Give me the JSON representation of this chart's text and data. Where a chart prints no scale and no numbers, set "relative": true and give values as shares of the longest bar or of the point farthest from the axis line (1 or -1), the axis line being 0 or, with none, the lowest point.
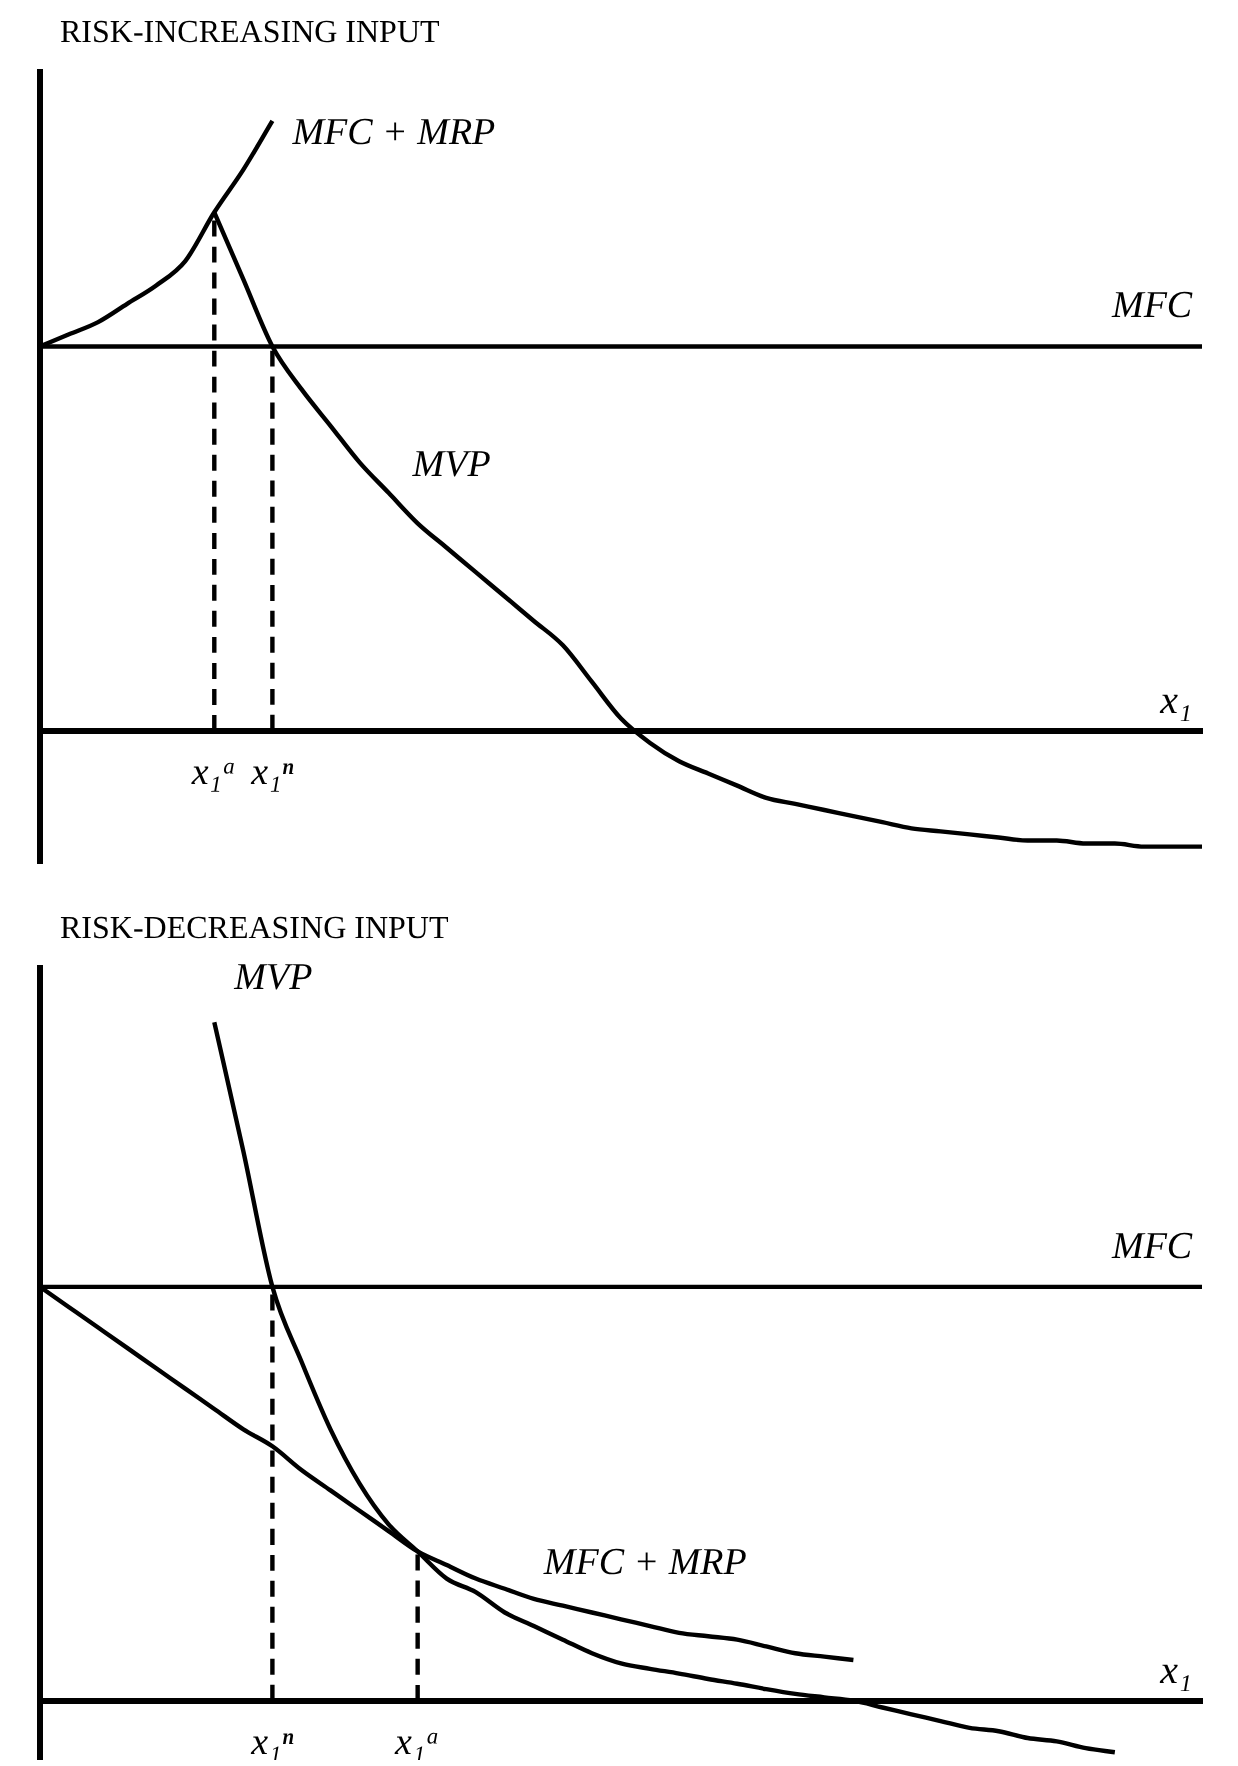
{
  "chart_data": [
    {
      "type": "line",
      "title": "RISK-INCREASING INPUT",
      "xlabel": "x₁",
      "relative": true,
      "grid": false,
      "legend": false,
      "categories": [
        null,
        null,
        null,
        null,
        null,
        null,
        "x₁ᵃ",
        null,
        "x₁ⁿ",
        null,
        null,
        null,
        null,
        null,
        null,
        null,
        null,
        null,
        null,
        null,
        null,
        null,
        null,
        null,
        null,
        null,
        null,
        null,
        null,
        null,
        null,
        null,
        null,
        null,
        null,
        null,
        null,
        null,
        null,
        null,
        null
      ],
      "series": [
        {
          "name": "MFC",
          "type": "line",
          "color": "#000000",
          "line_style": "solid",
          "values": [
            0.63,
            0.63,
            0.63,
            0.63,
            0.63,
            0.63,
            0.63,
            0.63,
            0.63,
            0.63,
            0.63,
            0.63,
            0.63,
            0.63,
            0.63,
            0.63,
            0.63,
            0.63,
            0.63,
            0.63,
            0.63,
            0.63,
            0.63,
            0.63,
            0.63,
            0.63,
            0.63,
            0.63,
            0.63,
            0.63,
            0.63,
            0.63,
            0.63,
            0.63,
            0.63,
            0.63,
            0.63,
            0.63,
            0.63,
            0.63,
            0.63
          ]
        },
        {
          "name": "MFC + MRP",
          "type": "line",
          "color": "#000000",
          "line_style": "solid",
          "values": [
            0.63,
            0.65,
            0.67,
            0.7,
            0.73,
            0.77,
            0.85,
            0.92,
            1.0,
            null,
            null,
            null,
            null,
            null,
            null,
            null,
            null,
            null,
            null,
            null,
            null,
            null,
            null,
            null,
            null,
            null,
            null,
            null,
            null,
            null,
            null,
            null,
            null,
            null,
            null,
            null,
            null,
            null,
            null,
            null,
            null
          ]
        },
        {
          "name": "MVP",
          "type": "line",
          "color": "#000000",
          "line_style": "solid",
          "values": [
            null,
            null,
            null,
            null,
            null,
            null,
            0.85,
            0.74,
            0.63,
            0.56,
            0.5,
            0.44,
            0.39,
            0.34,
            0.3,
            0.26,
            0.22,
            0.18,
            0.14,
            0.08,
            0.02,
            -0.02,
            -0.05,
            -0.07,
            -0.09,
            -0.11,
            -0.12,
            -0.13,
            -0.14,
            -0.15,
            -0.16,
            -0.165,
            -0.17,
            -0.175,
            -0.18,
            -0.18,
            -0.185,
            -0.185,
            -0.19,
            -0.19,
            -0.19
          ]
        },
        {
          "type": "line",
          "color": "#000000",
          "line_style": "dashed",
          "x": [
            "x₁ᵃ",
            "x₁ᵃ"
          ],
          "values": [
            0,
            0.85
          ]
        },
        {
          "type": "line",
          "color": "#000000",
          "line_style": "dashed",
          "x": [
            "x₁ⁿ",
            "x₁ⁿ"
          ],
          "values": [
            0,
            0.63
          ]
        }
      ]
    },
    {
      "type": "line",
      "title": "RISK-DECREASING INPUT",
      "xlabel": "x₁",
      "relative": true,
      "grid": false,
      "legend": false,
      "categories": [
        null,
        null,
        null,
        null,
        null,
        null,
        null,
        null,
        "x₁ⁿ",
        null,
        null,
        null,
        null,
        "x₁ᵃ",
        null,
        null,
        null,
        null,
        null,
        null,
        null,
        null,
        null,
        null,
        null,
        null,
        null,
        null,
        null,
        null,
        null,
        null,
        null,
        null,
        null,
        null,
        null,
        null,
        null,
        null,
        null
      ],
      "series": [
        {
          "name": "MVP",
          "type": "line",
          "color": "#000000",
          "line_style": "solid",
          "values": [
            null,
            null,
            null,
            null,
            null,
            null,
            1.0,
            0.81,
            0.61,
            0.5,
            0.4,
            0.32,
            0.26,
            0.22,
            0.18,
            0.16,
            0.13,
            0.11,
            0.09,
            0.07,
            0.055,
            0.047,
            0.04,
            0.032,
            0.025,
            0.017,
            0.01,
            0.005,
            0.0,
            -0.01,
            -0.02,
            -0.03,
            -0.04,
            -0.045,
            -0.055,
            -0.06,
            -0.07,
            -0.076,
            null,
            null,
            null
          ]
        },
        {
          "name": "MFC",
          "type": "line",
          "color": "#000000",
          "line_style": "solid",
          "values": [
            0.61,
            0.61,
            0.61,
            0.61,
            0.61,
            0.61,
            0.61,
            0.61,
            0.61,
            0.61,
            0.61,
            0.61,
            0.61,
            0.61,
            0.61,
            0.61,
            0.61,
            0.61,
            0.61,
            0.61,
            0.61,
            0.61,
            0.61,
            0.61,
            0.61,
            0.61,
            0.61,
            0.61,
            0.61,
            0.61,
            0.61,
            0.61,
            0.61,
            0.61,
            0.61,
            0.61,
            0.61,
            0.61,
            0.61,
            0.61,
            0.61
          ]
        },
        {
          "name": "MFC + MRP",
          "type": "line",
          "color": "#000000",
          "line_style": "solid",
          "values": [
            0.61,
            0.58,
            0.55,
            0.52,
            0.49,
            0.46,
            0.43,
            0.4,
            0.375,
            0.34,
            0.31,
            0.28,
            0.25,
            0.22,
            0.2,
            0.18,
            0.165,
            0.15,
            0.14,
            0.13,
            0.12,
            0.11,
            0.1,
            0.095,
            0.09,
            0.08,
            0.07,
            0.065,
            0.06,
            null,
            null,
            null,
            null,
            null,
            null,
            null,
            null,
            null,
            null,
            null,
            null
          ]
        },
        {
          "type": "line",
          "color": "#000000",
          "line_style": "dashed",
          "x": [
            "x₁ⁿ",
            "x₁ⁿ"
          ],
          "values": [
            0,
            0.61
          ]
        },
        {
          "type": "line",
          "color": "#000000",
          "line_style": "dashed",
          "x": [
            "x₁ᵃ",
            "x₁ᵃ"
          ],
          "values": [
            0,
            0.22
          ]
        }
      ]
    }
  ]
}
